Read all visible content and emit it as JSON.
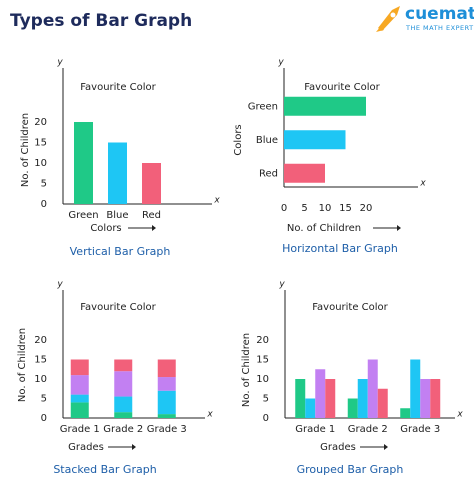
{
  "header": {
    "title": "Types of Bar Graph",
    "logo": "cuemath",
    "tagline": "THE MATH EXPERT"
  },
  "chart_data": [
    {
      "type": "bar",
      "orientation": "vertical",
      "title": "Favourite Color",
      "caption": "Vertical Bar Graph",
      "x_label": "Colors",
      "y_label": "No. of Children",
      "x_axis_name": "x",
      "y_axis_name": "y",
      "categories": [
        "Green",
        "Blue",
        "Red"
      ],
      "values": [
        20,
        15,
        10
      ],
      "colors": [
        "#1fc987",
        "#1ec6f4",
        "#f2607a"
      ],
      "colored_category_labels": true,
      "ylim": [
        0,
        30
      ],
      "yticks": [
        0,
        5,
        10,
        15,
        20
      ],
      "grid": false
    },
    {
      "type": "bar",
      "orientation": "horizontal",
      "title": "Favourite Color",
      "caption": "Horizontal Bar Graph",
      "x_label": "No. of Children",
      "y_label": "Colors",
      "x_axis_name": "x",
      "y_axis_name": "y",
      "categories": [
        "Green",
        "Blue",
        "Red"
      ],
      "values": [
        20,
        15,
        10
      ],
      "colors": [
        "#1fc987",
        "#1ec6f4",
        "#f2607a"
      ],
      "colored_category_labels": true,
      "xlim": [
        0,
        30
      ],
      "xticks": [
        0,
        5,
        10,
        15,
        20
      ],
      "grid": false
    },
    {
      "type": "bar",
      "orientation": "vertical",
      "stacked": true,
      "title": "Favourite Color",
      "caption": "Stacked Bar Graph",
      "x_label": "Grades",
      "y_label": "No. of Children",
      "x_axis_name": "x",
      "y_axis_name": "y",
      "categories": [
        "Grade 1",
        "Grade 2",
        "Grade 3"
      ],
      "series": [
        {
          "color": "#1fc987",
          "values": [
            4,
            1.5,
            1
          ]
        },
        {
          "color": "#1ec6f4",
          "values": [
            2,
            4,
            6
          ]
        },
        {
          "color": "#c280f2",
          "values": [
            5,
            6.5,
            3.5
          ]
        },
        {
          "color": "#f2607a",
          "values": [
            4,
            3,
            4.5
          ]
        }
      ],
      "ylim": [
        0,
        30
      ],
      "yticks": [
        0,
        5,
        10,
        15,
        20
      ],
      "grid": false
    },
    {
      "type": "bar",
      "orientation": "vertical",
      "title": "Favourite Color",
      "caption": "Grouped Bar Graph",
      "x_label": "Grades",
      "y_label": "No. of Children",
      "x_axis_name": "x",
      "y_axis_name": "y",
      "categories": [
        "Grade 1",
        "Grade 2",
        "Grade 3"
      ],
      "series": [
        {
          "color": "#1fc987",
          "values": [
            10,
            5,
            2.5
          ]
        },
        {
          "color": "#1ec6f4",
          "values": [
            5,
            10,
            15
          ]
        },
        {
          "color": "#c280f2",
          "values": [
            12.5,
            15,
            10
          ]
        },
        {
          "color": "#f2607a",
          "values": [
            10,
            7.5,
            10
          ]
        }
      ],
      "ylim": [
        0,
        30
      ],
      "yticks": [
        0,
        5,
        10,
        15,
        20
      ],
      "grid": false
    }
  ]
}
